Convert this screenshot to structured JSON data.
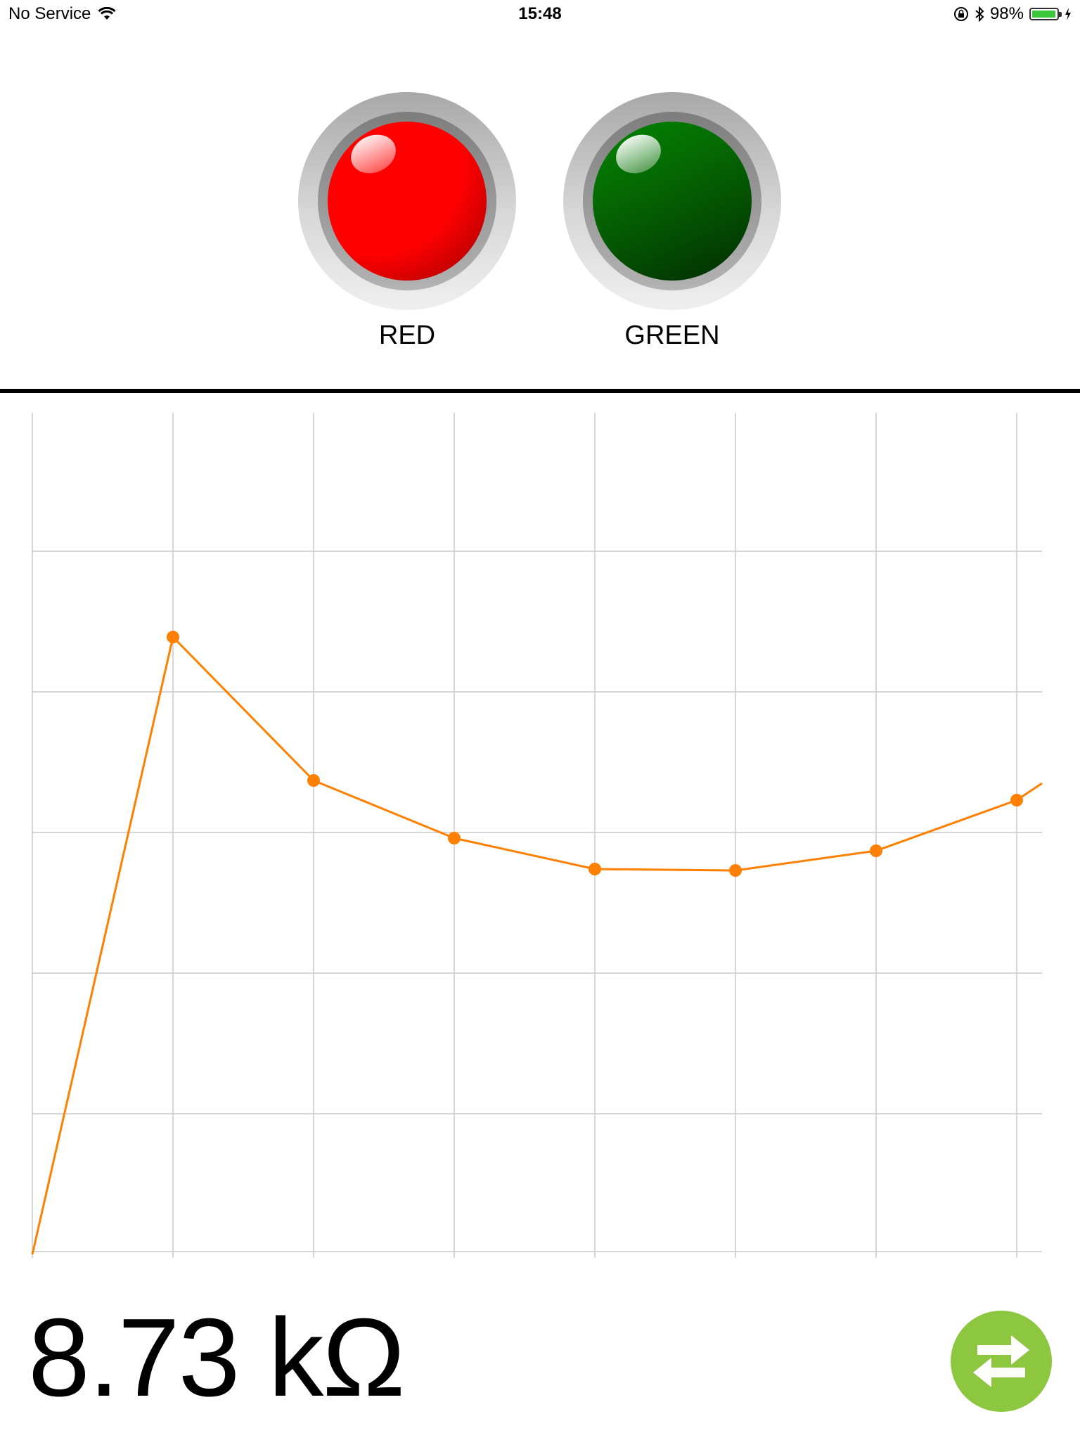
{
  "status_bar": {
    "carrier": "No Service",
    "time": "15:48",
    "battery_percent": "98%",
    "battery_level": 0.98,
    "icons": [
      "wifi-icon",
      "orientation-lock-icon",
      "bluetooth-icon",
      "charging-bolt-icon"
    ]
  },
  "indicators": [
    {
      "label": "RED",
      "state": "on",
      "color": "#ff0000"
    },
    {
      "label": "GREEN",
      "state": "on",
      "color": "#057a03"
    }
  ],
  "chart_data": {
    "type": "line",
    "x": [
      0,
      1,
      2,
      3,
      4,
      5,
      6,
      7,
      7.18
    ],
    "series": [
      {
        "values": [
          0.0,
          4.39,
          3.37,
          2.96,
          2.74,
          2.73,
          2.87,
          3.23,
          3.35
        ],
        "color": "#ff8000",
        "markers": [
          false,
          true,
          true,
          true,
          true,
          true,
          true,
          true,
          false
        ]
      }
    ],
    "xlim": [
      0,
      7.18
    ],
    "ylim": [
      0,
      5.1
    ],
    "grid": true
  },
  "reading": {
    "value": "8.73 kΩ"
  },
  "swap_button": {
    "icon": "swap-arrows-icon",
    "color": "#8dc63f"
  }
}
